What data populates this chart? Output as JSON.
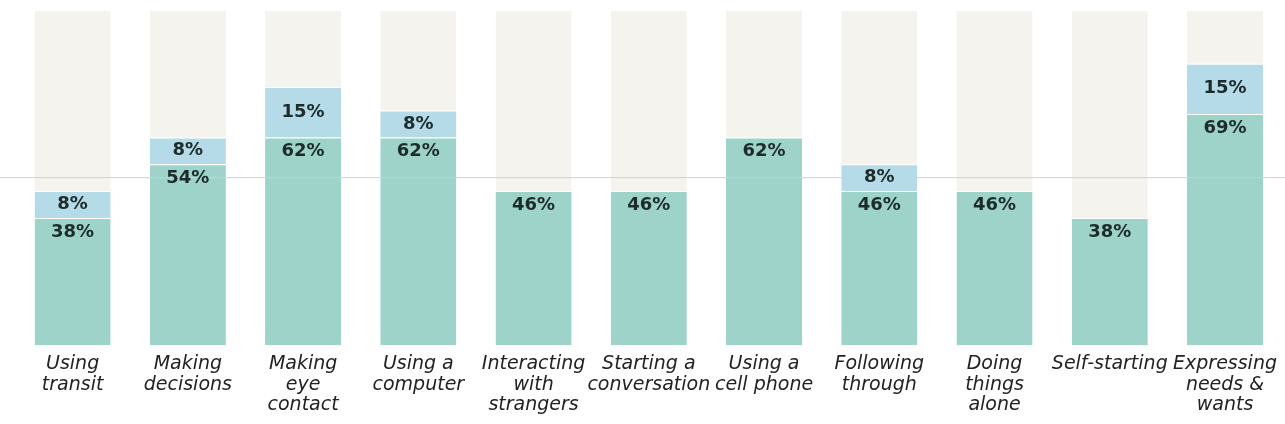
{
  "chart_data": {
    "type": "bar",
    "stacked": true,
    "categories": [
      "Using transit",
      "Making decisions",
      "Making eye contact",
      "Using a computer",
      "Interacting with strangers",
      "Starting a conversation",
      "Using a cell phone",
      "Following through",
      "Doing things alone",
      "Self-starting",
      "Expressing needs & wants"
    ],
    "series": [
      {
        "color": "#9dd3c9",
        "values": [
          38,
          54,
          62,
          62,
          46,
          46,
          62,
          46,
          46,
          38,
          69
        ],
        "value_labels": [
          "38%",
          "54%",
          "62%",
          "62%",
          "46%",
          "46%",
          "62%",
          "46%",
          "46%",
          "38%",
          "69%"
        ]
      },
      {
        "color": "#b5dbe8",
        "values": [
          8,
          8,
          15,
          8,
          0,
          0,
          0,
          8,
          0,
          0,
          15
        ],
        "value_labels": [
          "8%",
          "8%",
          "15%",
          "8%",
          null,
          null,
          null,
          "8%",
          null,
          null,
          "15%"
        ]
      },
      {
        "color": "#f4f3ee",
        "values": [
          54,
          38,
          23,
          30,
          54,
          54,
          38,
          46,
          54,
          62,
          16
        ]
      }
    ],
    "ylim": [
      0,
      100
    ],
    "tick_labels": "x",
    "grid": false,
    "legend": false,
    "ref_lines": [
      {
        "axis": "y",
        "value": 50,
        "color": "#d0d0cc"
      }
    ]
  }
}
